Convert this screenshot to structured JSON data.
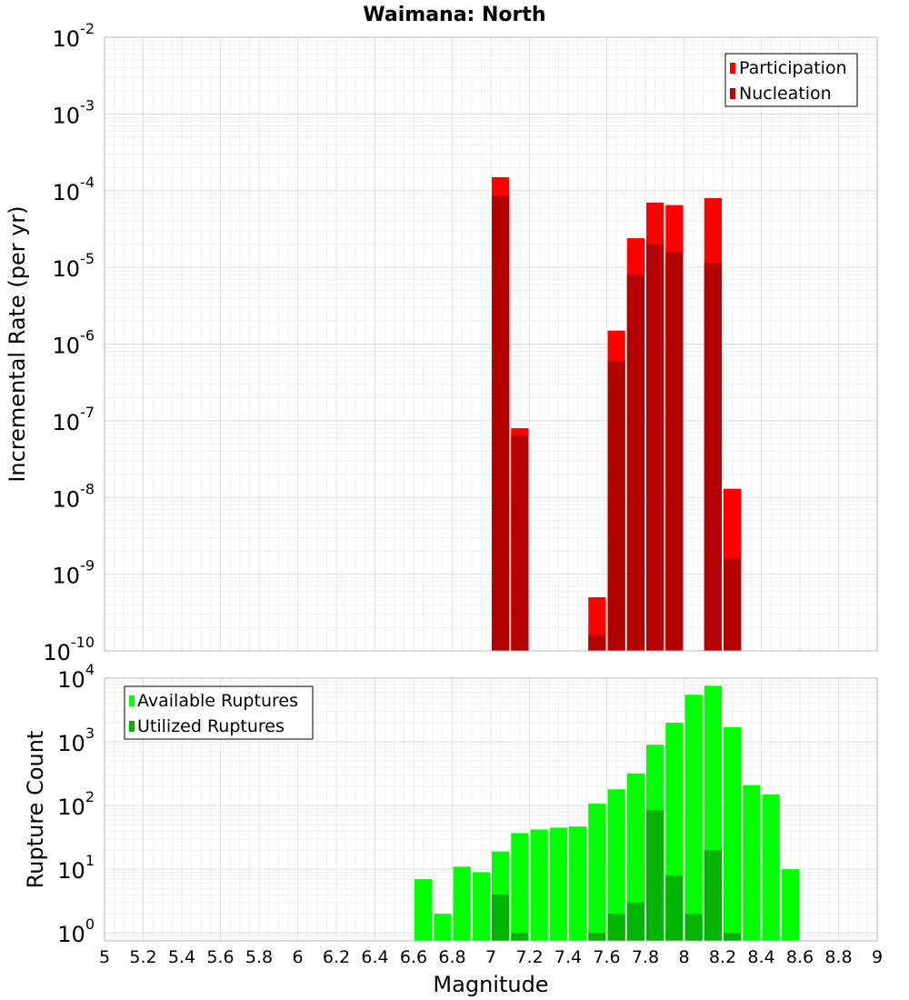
{
  "chart_data": [
    {
      "type": "bar",
      "title": "Waimana: North",
      "xlabel": "",
      "ylabel": "Incremental Rate (per yr)",
      "xlim": [
        5,
        9
      ],
      "ylim": [
        1e-10,
        0.01
      ],
      "y_scale": "log",
      "y_tick_exponents": [
        -10,
        -9,
        -8,
        -7,
        -6,
        -5,
        -4,
        -3,
        -2
      ],
      "grid": true,
      "legend_position": "top-right",
      "bar_width": 0.1,
      "series": [
        {
          "name": "Participation",
          "color": "#ff0000",
          "x": [
            7.05,
            7.15,
            7.55,
            7.65,
            7.75,
            7.85,
            7.95,
            8.15,
            8.25
          ],
          "values": [
            0.00015,
            8e-08,
            5e-10,
            1.5e-06,
            2.4e-05,
            7e-05,
            6.5e-05,
            8e-05,
            1.3e-08
          ]
        },
        {
          "name": "Nucleation",
          "color": "#b30000",
          "x": [
            7.05,
            7.15,
            7.55,
            7.65,
            7.75,
            7.85,
            7.95,
            8.15,
            8.25
          ],
          "values": [
            8.5e-05,
            6.5e-08,
            1.6e-10,
            6e-07,
            8e-06,
            2e-05,
            1.6e-05,
            1.15e-05,
            1.6e-09
          ]
        }
      ]
    },
    {
      "type": "bar",
      "title": "",
      "xlabel": "Magnitude",
      "ylabel": "Rupture Count",
      "xlim": [
        5,
        9
      ],
      "ylim": [
        0.75,
        10000
      ],
      "y_scale": "log",
      "y_tick_exponents": [
        0,
        1,
        2,
        3,
        4
      ],
      "x_ticks": [
        "5",
        "5.2",
        "5.4",
        "5.6",
        "5.8",
        "6",
        "6.2",
        "6.4",
        "6.6",
        "6.8",
        "7",
        "7.2",
        "7.4",
        "7.6",
        "7.8",
        "8",
        "8.2",
        "8.4",
        "8.6",
        "8.8",
        "9"
      ],
      "grid": true,
      "legend_position": "top-left",
      "bar_width": 0.1,
      "series": [
        {
          "name": "Available Ruptures",
          "color": "#00ff00",
          "x": [
            6.65,
            6.75,
            6.85,
            6.95,
            7.05,
            7.15,
            7.25,
            7.35,
            7.45,
            7.55,
            7.65,
            7.75,
            7.85,
            7.95,
            8.05,
            8.15,
            8.25,
            8.35,
            8.45,
            8.55
          ],
          "values": [
            7,
            2,
            11,
            9,
            19,
            37,
            42,
            45,
            47,
            107,
            180,
            320,
            900,
            2000,
            5500,
            7600,
            1700,
            210,
            150,
            10
          ]
        },
        {
          "name": "Utilized Ruptures",
          "color": "#00b300",
          "x": [
            7.05,
            7.15,
            7.55,
            7.65,
            7.75,
            7.85,
            7.95,
            8.05,
            8.15,
            8.25
          ],
          "values": [
            4,
            1,
            1,
            2,
            3,
            85,
            8,
            2,
            20,
            1
          ]
        }
      ]
    }
  ]
}
